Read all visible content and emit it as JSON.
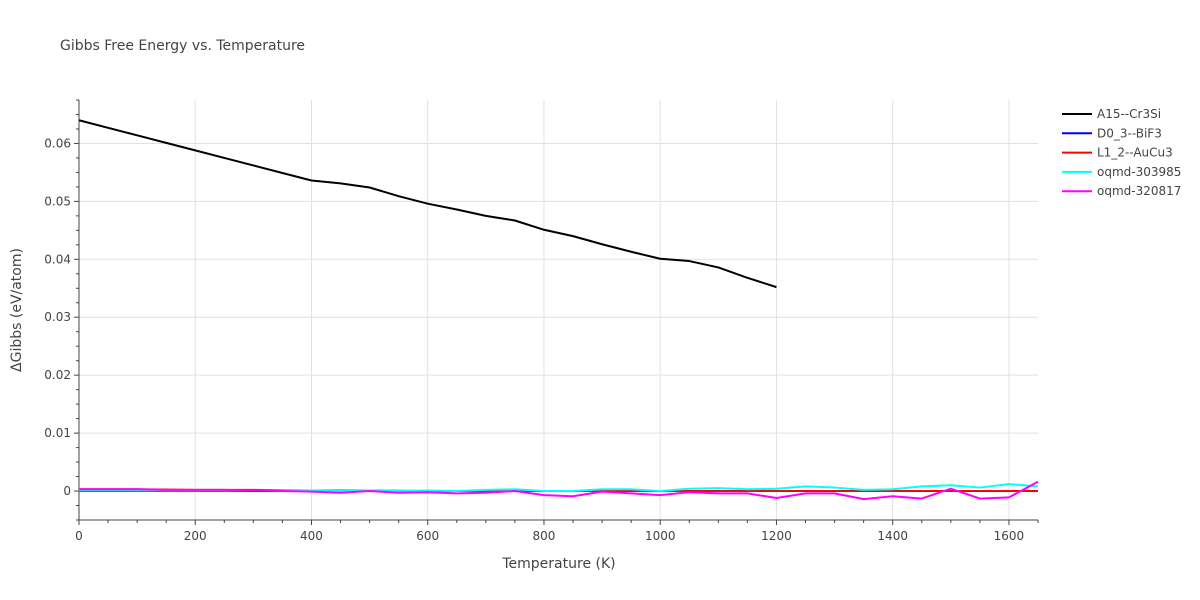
{
  "chart_data": {
    "type": "line",
    "title": "Gibbs Free Energy vs. Temperature",
    "xlabel": "Temperature (K)",
    "ylabel": "ΔGibbs (eV/atom)",
    "xlim": [
      0,
      1650
    ],
    "ylim": [
      -0.005,
      0.0675
    ],
    "xticks": [
      0,
      200,
      400,
      600,
      800,
      1000,
      1200,
      1400,
      1600
    ],
    "yticks": [
      0,
      0.01,
      0.02,
      0.03,
      0.04,
      0.05,
      0.06
    ],
    "ytick_labels": [
      "0",
      "0.01",
      "0.02",
      "0.03",
      "0.04",
      "0.05",
      "0.06"
    ],
    "grid": true,
    "legend_position": "top-right",
    "series": [
      {
        "name": "A15--Cr3Si",
        "color": "#000000",
        "x": [
          0,
          50,
          100,
          150,
          200,
          250,
          300,
          350,
          400,
          450,
          500,
          550,
          600,
          650,
          700,
          750,
          800,
          850,
          900,
          950,
          1000,
          1050,
          1100,
          1150,
          1200
        ],
        "y": [
          0.064,
          0.0627,
          0.0614,
          0.0601,
          0.0588,
          0.0575,
          0.0562,
          0.0549,
          0.0536,
          0.0531,
          0.0524,
          0.0509,
          0.0496,
          0.0486,
          0.0475,
          0.0467,
          0.0451,
          0.044,
          0.0426,
          0.0413,
          0.0401,
          0.0397,
          0.0386,
          0.0368,
          0.0352
        ]
      },
      {
        "name": "D0_3--BiF3",
        "color": "#0000ff",
        "x": [
          0,
          100,
          200,
          300,
          400,
          500,
          600,
          700,
          800,
          900,
          1000,
          1100,
          1200,
          1300,
          1400,
          1500,
          1600,
          1650
        ],
        "y": [
          0.0,
          0.0,
          0.0,
          0.0,
          0.0,
          0.0,
          0.0,
          0.0,
          0.0,
          0.0,
          0.0,
          0.0,
          0.0,
          0.0,
          0.0,
          0.0,
          0.0,
          0.0
        ]
      },
      {
        "name": "L1_2--AuCu3",
        "color": "#ff0000",
        "x": [
          0,
          100,
          200,
          300,
          400,
          500,
          600,
          700,
          800,
          900,
          1000,
          1100,
          1200,
          1300,
          1400,
          1500,
          1600,
          1650
        ],
        "y": [
          0.0003,
          0.0003,
          0.0002,
          0.0002,
          0.0001,
          0.0001,
          0.0,
          0.0,
          0.0,
          0.0,
          0.0,
          0.0,
          0.0,
          0.0,
          0.0,
          0.0,
          0.0,
          0.0
        ]
      },
      {
        "name": "oqmd-303985",
        "color": "#00ffff",
        "x": [
          0,
          50,
          100,
          150,
          200,
          250,
          300,
          350,
          400,
          450,
          500,
          550,
          600,
          650,
          700,
          750,
          800,
          850,
          900,
          950,
          1000,
          1050,
          1100,
          1150,
          1200,
          1250,
          1300,
          1350,
          1400,
          1450,
          1500,
          1550,
          1600,
          1650
        ],
        "y": [
          0.0001,
          0.0001,
          0.0001,
          0.0001,
          0.0001,
          0.0001,
          0.0001,
          0.0001,
          0.0001,
          0.0,
          0.0001,
          0.0,
          0.0001,
          0.0,
          0.0002,
          0.0003,
          0.0,
          0.0,
          0.0003,
          0.0003,
          0.0,
          0.0004,
          0.0005,
          0.0003,
          0.0004,
          0.0008,
          0.0006,
          0.0002,
          0.0003,
          0.0008,
          0.001,
          0.0006,
          0.0012,
          0.0008
        ]
      },
      {
        "name": "oqmd-320817",
        "color": "#ff00ff",
        "x": [
          0,
          50,
          100,
          150,
          200,
          250,
          300,
          350,
          400,
          450,
          500,
          550,
          600,
          650,
          700,
          750,
          800,
          850,
          900,
          950,
          1000,
          1050,
          1100,
          1150,
          1200,
          1250,
          1300,
          1350,
          1400,
          1450,
          1500,
          1550,
          1600,
          1650
        ],
        "y": [
          0.0003,
          0.0003,
          0.0003,
          0.0002,
          0.0002,
          0.0002,
          0.0001,
          0.0,
          -0.0001,
          -0.0003,
          0.0,
          -0.0003,
          -0.0002,
          -0.0004,
          -0.0003,
          0.0,
          -0.0007,
          -0.0009,
          -0.0001,
          -0.0004,
          -0.0007,
          -0.0002,
          -0.0004,
          -0.0004,
          -0.0012,
          -0.0004,
          -0.0004,
          -0.0014,
          -0.0009,
          -0.0013,
          0.0004,
          -0.0013,
          -0.0011,
          0.0016
        ]
      }
    ]
  }
}
